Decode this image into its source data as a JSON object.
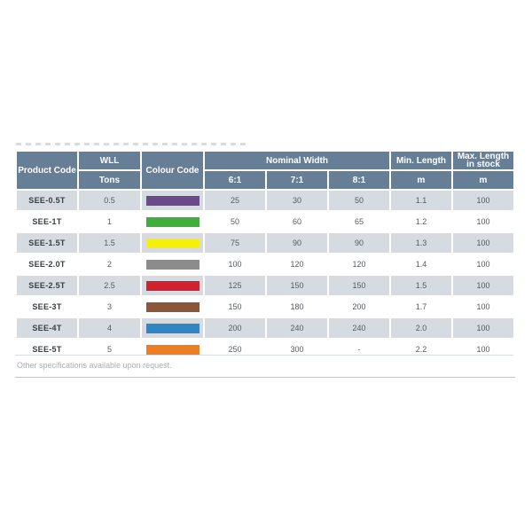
{
  "table": {
    "headers": {
      "product_code": "Product Code",
      "wll": "WLL",
      "wll_unit": "Tons",
      "colour_code": "Colour Code",
      "nominal_width": "Nominal Width",
      "ratio_6": "6:1",
      "ratio_7": "7:1",
      "ratio_8": "8:1",
      "min_length": "Min. Length",
      "min_length_unit": "m",
      "max_length": "Max. Length in stock",
      "max_length_unit": "m"
    },
    "rows": [
      {
        "code": "SEE-0.5T",
        "wll": "0.5",
        "colour": "#6b4a8c",
        "w6": "25",
        "w7": "30",
        "w8": "50",
        "min": "1.1",
        "max": "100"
      },
      {
        "code": "SEE-1T",
        "wll": "1",
        "colour": "#3fae3d",
        "w6": "50",
        "w7": "60",
        "w8": "65",
        "min": "1.2",
        "max": "100"
      },
      {
        "code": "SEE-1.5T",
        "wll": "1.5",
        "colour": "#f5ef0c",
        "w6": "75",
        "w7": "90",
        "w8": "90",
        "min": "1.3",
        "max": "100"
      },
      {
        "code": "SEE-2.0T",
        "wll": "2",
        "colour": "#8c8c8c",
        "w6": "100",
        "w7": "120",
        "w8": "120",
        "min": "1.4",
        "max": "100"
      },
      {
        "code": "SEE-2.5T",
        "wll": "2.5",
        "colour": "#d0222e",
        "w6": "125",
        "w7": "150",
        "w8": "150",
        "min": "1.5",
        "max": "100"
      },
      {
        "code": "SEE-3T",
        "wll": "3",
        "colour": "#8a573a",
        "w6": "150",
        "w7": "180",
        "w8": "200",
        "min": "1.7",
        "max": "100"
      },
      {
        "code": "SEE-4T",
        "wll": "4",
        "colour": "#2f86c3",
        "w6": "200",
        "w7": "240",
        "w8": "240",
        "min": "2.0",
        "max": "100"
      },
      {
        "code": "SEE-5T",
        "wll": "5",
        "colour": "#ef7d22",
        "w6": "250",
        "w7": "300",
        "w8": "-",
        "min": "2.2",
        "max": "100"
      }
    ]
  },
  "footnote": "Other specifications available upon request."
}
